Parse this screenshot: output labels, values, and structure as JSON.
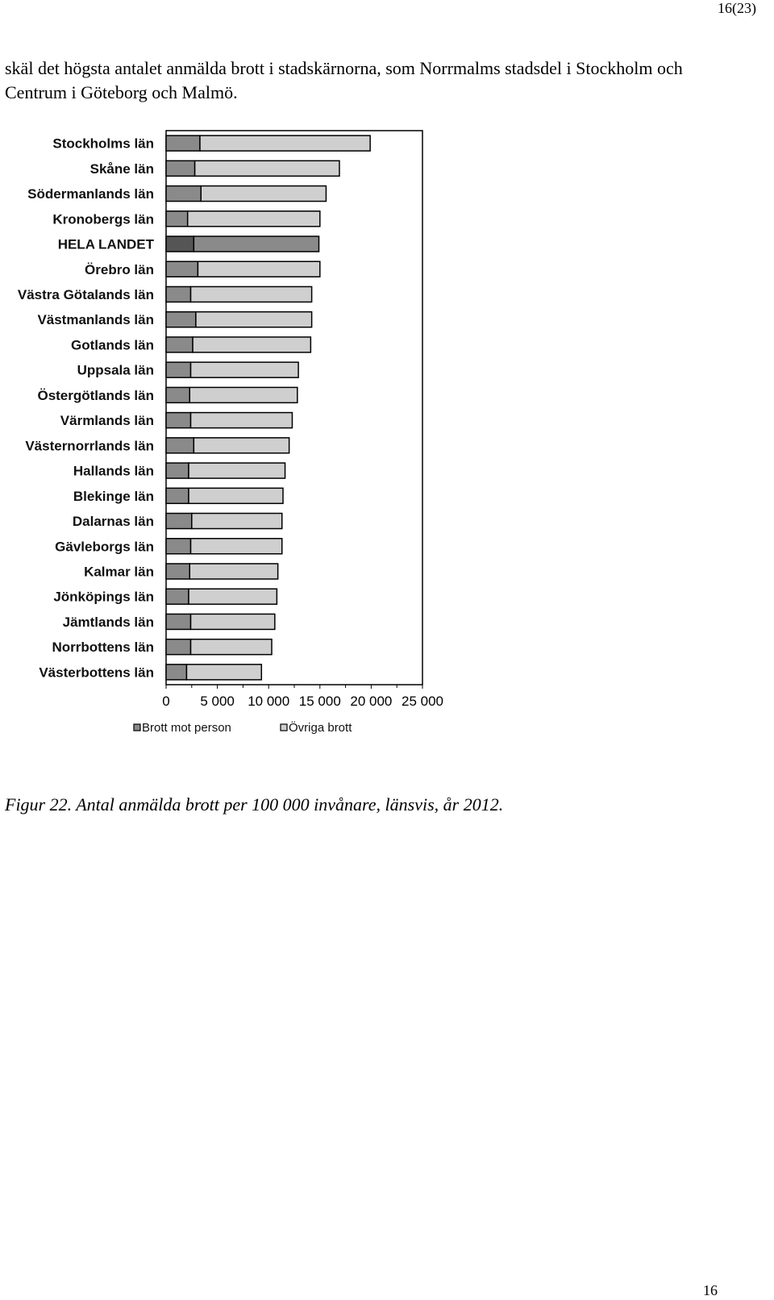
{
  "header": {
    "page_label": "16(23)"
  },
  "intro": {
    "text": "skäl det högsta antalet anmälda brott i stadskärnorna, som Norrmalms stadsdel i Stockholm och Centrum i Göteborg och Malmö."
  },
  "figure": {
    "caption": "Figur 22. Antal anmälda brott per 100 000 invånare, länsvis, år 2012."
  },
  "footer": {
    "page_number": "16"
  },
  "colors": {
    "person": "#8a8a8a",
    "ovriga": "#cfcfcf",
    "hela_landet": "#555555",
    "frame": "#000000"
  },
  "chart_data": {
    "type": "bar",
    "orientation": "horizontal",
    "stacked": true,
    "categories": [
      "Stockholms län",
      "Skåne län",
      "Södermanlands län",
      "Kronobergs län",
      "HELA LANDET",
      "Örebro län",
      "Västra Götalands län",
      "Västmanlands län",
      "Gotlands län",
      "Uppsala län",
      "Östergötlands  län",
      "Värmlands län",
      "Västernorrlands län",
      "Hallands län",
      "Blekinge län",
      "Dalarnas län",
      "Gävleborgs län",
      "Kalmar län",
      "Jönköpings län",
      "Jämtlands län",
      "Norrbottens län",
      "Västerbottens län"
    ],
    "series": [
      {
        "name": "Brott mot person",
        "values": [
          3300,
          2800,
          3400,
          2100,
          2700,
          3100,
          2400,
          2900,
          2600,
          2400,
          2300,
          2400,
          2700,
          2200,
          2200,
          2500,
          2400,
          2300,
          2200,
          2400,
          2400,
          2000
        ]
      },
      {
        "name": "Övriga brott",
        "values": [
          16600,
          14100,
          12200,
          12900,
          12200,
          11900,
          11800,
          11300,
          11500,
          10500,
          10500,
          9900,
          9300,
          9400,
          9200,
          8800,
          8900,
          8600,
          8600,
          8200,
          7900,
          7300
        ]
      }
    ],
    "highlight_category": "HELA LANDET",
    "xlim": [
      0,
      25000
    ],
    "x_ticks": [
      0,
      5000,
      10000,
      15000,
      20000,
      25000
    ],
    "x_tick_labels": [
      "0",
      "5 000",
      "10 000",
      "15 000",
      "20 000",
      "25 000"
    ],
    "title": "",
    "xlabel": "",
    "ylabel": "",
    "legend": {
      "position": "bottom",
      "entries": [
        "Brott mot person",
        "Övriga brott"
      ]
    },
    "grid": false
  }
}
